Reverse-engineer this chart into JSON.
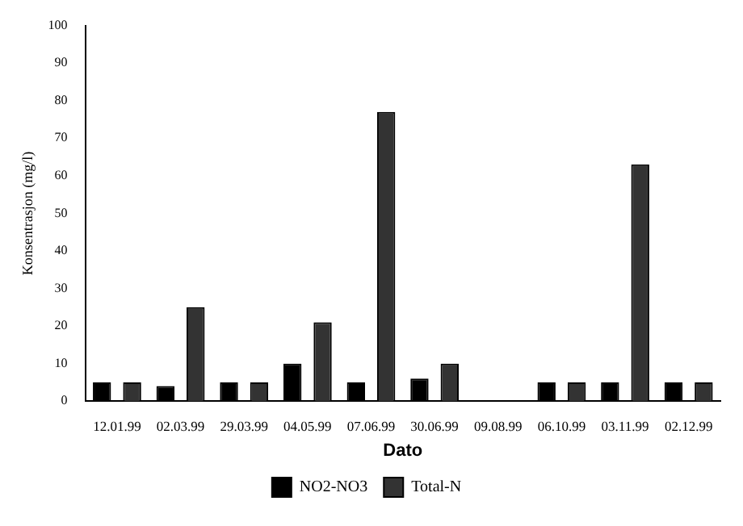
{
  "chart_data": {
    "type": "bar",
    "xlabel": "Dato",
    "ylabel": "Konsentrasjon (mg/l)",
    "categories": [
      "12.01.99",
      "02.03.99",
      "29.03.99",
      "04.05.99",
      "07.06.99",
      "30.06.99",
      "09.08.99",
      "06.10.99",
      "03.11.99",
      "02.12.99"
    ],
    "series": [
      {
        "name": "NO2-NO3",
        "color": "#000000",
        "values": [
          5,
          4,
          5,
          10,
          5,
          6,
          null,
          5,
          5,
          5
        ]
      },
      {
        "name": "Total-N",
        "color": "#333333",
        "values": [
          5,
          25,
          5,
          21,
          77,
          10,
          null,
          5,
          63,
          5
        ]
      }
    ],
    "ylim": [
      0,
      100
    ],
    "yticks": [
      0,
      10,
      20,
      30,
      40,
      50,
      60,
      70,
      80,
      90,
      100
    ],
    "grid": false,
    "legend": "bottom"
  }
}
